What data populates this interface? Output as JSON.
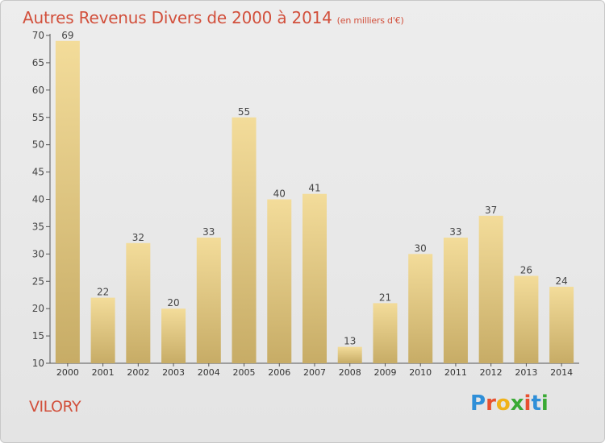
{
  "title": "Autres Revenus Divers de 2000 à 2014",
  "subtitle": "(en milliers d'€)",
  "commune": "VILORY",
  "logo": "Proxiti",
  "colors": {
    "title": "#d2503c",
    "bar_light": "#f3dc9a",
    "bar_dark": "#c7ac66",
    "logo": [
      "#2f8fd8",
      "#e8502f",
      "#f0b21a",
      "#3aaa35",
      "#e8502f",
      "#2f8fd8",
      "#3aaa35"
    ]
  },
  "chart_data": {
    "type": "bar",
    "categories": [
      "2000",
      "2001",
      "2002",
      "2003",
      "2004",
      "2005",
      "2006",
      "2007",
      "2008",
      "2009",
      "2010",
      "2011",
      "2012",
      "2013",
      "2014"
    ],
    "values": [
      69,
      22,
      32,
      20,
      33,
      55,
      40,
      41,
      13,
      21,
      30,
      33,
      37,
      26,
      24
    ],
    "ylim": [
      10,
      70
    ],
    "yticks": [
      10,
      15,
      20,
      25,
      30,
      35,
      40,
      45,
      50,
      55,
      60,
      65,
      70
    ],
    "grid": false,
    "data_labels": true
  }
}
